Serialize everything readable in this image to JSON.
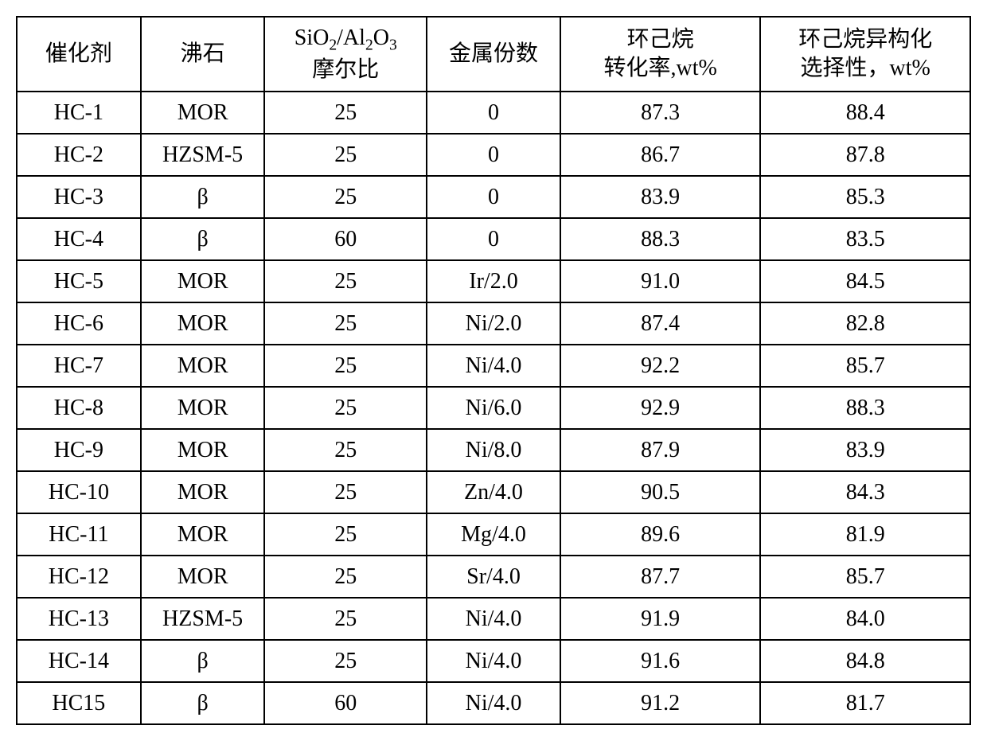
{
  "table": {
    "type": "table",
    "border_color": "#000000",
    "background_color": "#ffffff",
    "text_color": "#000000",
    "font_size": 28,
    "border_width": 2,
    "header": {
      "col1": "催化剂",
      "col2": "沸石",
      "col3_line1": "SiO",
      "col3_sub1": "2",
      "col3_mid": "/Al",
      "col3_sub2": "2",
      "col3_line1b": "O",
      "col3_sub3": "3",
      "col3_line2": "摩尔比",
      "col4": "金属份数",
      "col5_line1": "环己烷",
      "col5_line2": "转化率,wt%",
      "col6_line1": "环己烷异构化",
      "col6_line2": "选择性，wt%"
    },
    "rows": [
      {
        "catalyst": "HC-1",
        "zeolite": "MOR",
        "ratio": "25",
        "metal": "0",
        "conversion": "87.3",
        "selectivity": "88.4"
      },
      {
        "catalyst": "HC-2",
        "zeolite": "HZSM-5",
        "ratio": "25",
        "metal": "0",
        "conversion": "86.7",
        "selectivity": "87.8"
      },
      {
        "catalyst": "HC-3",
        "zeolite": "β",
        "ratio": "25",
        "metal": "0",
        "conversion": "83.9",
        "selectivity": "85.3"
      },
      {
        "catalyst": "HC-4",
        "zeolite": "β",
        "ratio": "60",
        "metal": "0",
        "conversion": "88.3",
        "selectivity": "83.5"
      },
      {
        "catalyst": "HC-5",
        "zeolite": "MOR",
        "ratio": "25",
        "metal": "Ir/2.0",
        "conversion": "91.0",
        "selectivity": "84.5"
      },
      {
        "catalyst": "HC-6",
        "zeolite": "MOR",
        "ratio": "25",
        "metal": "Ni/2.0",
        "conversion": "87.4",
        "selectivity": "82.8"
      },
      {
        "catalyst": "HC-7",
        "zeolite": "MOR",
        "ratio": "25",
        "metal": "Ni/4.0",
        "conversion": "92.2",
        "selectivity": "85.7"
      },
      {
        "catalyst": "HC-8",
        "zeolite": "MOR",
        "ratio": "25",
        "metal": "Ni/6.0",
        "conversion": "92.9",
        "selectivity": "88.3"
      },
      {
        "catalyst": "HC-9",
        "zeolite": "MOR",
        "ratio": "25",
        "metal": "Ni/8.0",
        "conversion": "87.9",
        "selectivity": "83.9"
      },
      {
        "catalyst": "HC-10",
        "zeolite": "MOR",
        "ratio": "25",
        "metal": "Zn/4.0",
        "conversion": "90.5",
        "selectivity": "84.3"
      },
      {
        "catalyst": "HC-11",
        "zeolite": "MOR",
        "ratio": "25",
        "metal": "Mg/4.0",
        "conversion": "89.6",
        "selectivity": "81.9"
      },
      {
        "catalyst": "HC-12",
        "zeolite": "MOR",
        "ratio": "25",
        "metal": "Sr/4.0",
        "conversion": "87.7",
        "selectivity": "85.7"
      },
      {
        "catalyst": "HC-13",
        "zeolite": "HZSM-5",
        "ratio": "25",
        "metal": "Ni/4.0",
        "conversion": "91.9",
        "selectivity": "84.0"
      },
      {
        "catalyst": "HC-14",
        "zeolite": "β",
        "ratio": "25",
        "metal": "Ni/4.0",
        "conversion": "91.6",
        "selectivity": "84.8"
      },
      {
        "catalyst": "HC15",
        "zeolite": "β",
        "ratio": "60",
        "metal": "Ni/4.0",
        "conversion": "91.2",
        "selectivity": "81.7"
      }
    ],
    "column_widths": [
      "13%",
      "13%",
      "17%",
      "14%",
      "21%",
      "22%"
    ]
  }
}
